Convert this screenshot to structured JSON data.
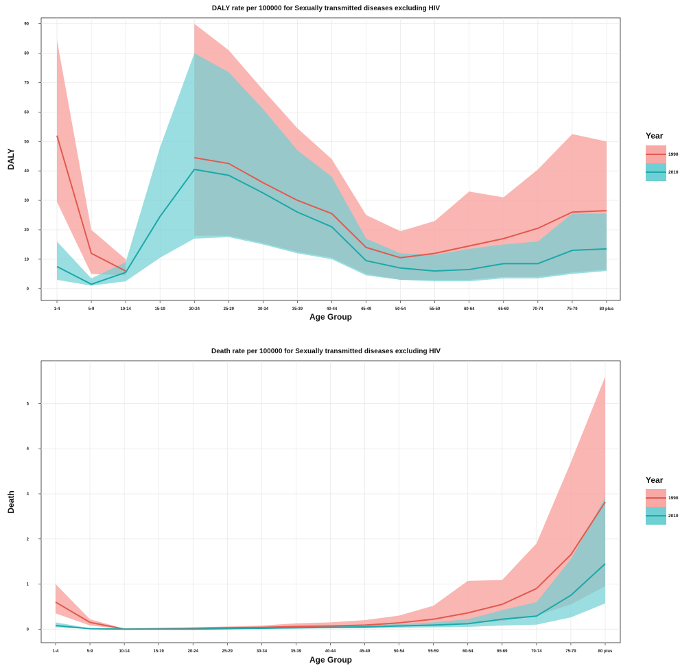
{
  "chart_data": [
    {
      "type": "line",
      "title": "DALY rate per 100000 for Sexually transmitted diseases excluding HIV",
      "xlabel": "Age Group",
      "ylabel": "DALY",
      "categories": [
        "1-4",
        "5-9",
        "10-14",
        "15-19",
        "20-24",
        "25-29",
        "30-34",
        "35-39",
        "40-44",
        "45-49",
        "50-54",
        "55-59",
        "60-64",
        "65-69",
        "70-74",
        "75-79",
        "80 plus"
      ],
      "ylim": [
        -4,
        92
      ],
      "yticks": [
        0,
        10,
        20,
        30,
        40,
        50,
        60,
        70,
        80,
        90
      ],
      "grid": true,
      "legend": {
        "title": "Year",
        "position": "right"
      },
      "series": [
        {
          "name": "1990",
          "color": "#e05a4f",
          "fill": "#f8a9a6",
          "mean": [
            52,
            12,
            6,
            null,
            44.5,
            42.5,
            36,
            30,
            25.5,
            14,
            10.5,
            12,
            14.5,
            17,
            20.5,
            26,
            26.5
          ],
          "lower": [
            29.5,
            5,
            4.5,
            null,
            18,
            18,
            15.5,
            12.5,
            10.5,
            5,
            3,
            3,
            3,
            4,
            4,
            5.5,
            6.5
          ],
          "upper": [
            84.5,
            20,
            10,
            null,
            90,
            81,
            67.5,
            54.5,
            44,
            25,
            19.5,
            23,
            33,
            31,
            40.5,
            52.5,
            50
          ]
        },
        {
          "name": "2010",
          "color": "#1ba8a8",
          "fill": "#6fd0d4",
          "mean": [
            7.5,
            1.5,
            5.5,
            24.5,
            40.5,
            38.5,
            32.5,
            26,
            21,
            9.5,
            7,
            6,
            6.5,
            8.5,
            8.5,
            13,
            13.5
          ],
          "lower": [
            3,
            1,
            2.5,
            10.5,
            17,
            17.5,
            15,
            12,
            10,
            4.5,
            3,
            2.5,
            2.5,
            3.5,
            3.5,
            5,
            6
          ],
          "upper": [
            16,
            3.5,
            9,
            48,
            80,
            73.5,
            61,
            47,
            38,
            17,
            12,
            11.5,
            13.5,
            15,
            16,
            25.5,
            25.5
          ]
        }
      ]
    },
    {
      "type": "line",
      "title": "Death rate per 100000 for Sexually transmitted diseases excluding HIV",
      "xlabel": "Age Group",
      "ylabel": "Death",
      "categories": [
        "1-4",
        "5-9",
        "10-14",
        "15-19",
        "20-24",
        "25-29",
        "30-34",
        "35-39",
        "40-44",
        "45-49",
        "50-54",
        "55-59",
        "60-64",
        "65-69",
        "70-74",
        "75-79",
        "80 plus"
      ],
      "ylim": [
        -0.3,
        5.95
      ],
      "yticks": [
        0,
        1,
        2,
        3,
        4,
        5
      ],
      "grid": true,
      "legend": {
        "title": "Year",
        "position": "right"
      },
      "series": [
        {
          "name": "1990",
          "color": "#e05a4f",
          "fill": "#f8a9a6",
          "mean": [
            0.6,
            0.15,
            0,
            0.01,
            0.02,
            0.03,
            0.04,
            0.06,
            0.07,
            0.09,
            0.14,
            0.22,
            0.36,
            0.55,
            0.9,
            1.65,
            2.82
          ],
          "lower": [
            0.35,
            0.08,
            0,
            0,
            0,
            0.01,
            0.02,
            0.03,
            0.03,
            0.04,
            0.06,
            0.09,
            0.12,
            0.18,
            0.3,
            0.55,
            0.95
          ],
          "upper": [
            1.0,
            0.22,
            0.01,
            0.02,
            0.04,
            0.06,
            0.08,
            0.13,
            0.15,
            0.2,
            0.3,
            0.52,
            1.07,
            1.09,
            1.9,
            3.7,
            5.6
          ]
        },
        {
          "name": "2010",
          "color": "#1ba8a8",
          "fill": "#6fd0d4",
          "mean": [
            0.08,
            0.01,
            0,
            0,
            0,
            0.01,
            0.02,
            0.03,
            0.04,
            0.05,
            0.07,
            0.09,
            0.12,
            0.22,
            0.29,
            0.75,
            1.45
          ],
          "lower": [
            0.04,
            0.005,
            0,
            0,
            0,
            0,
            0.01,
            0.01,
            0.02,
            0.02,
            0.03,
            0.04,
            0.05,
            0.08,
            0.1,
            0.26,
            0.57
          ],
          "upper": [
            0.15,
            0.02,
            0,
            0.01,
            0.01,
            0.02,
            0.03,
            0.05,
            0.07,
            0.09,
            0.11,
            0.15,
            0.22,
            0.42,
            0.6,
            1.55,
            2.92
          ]
        }
      ]
    }
  ]
}
